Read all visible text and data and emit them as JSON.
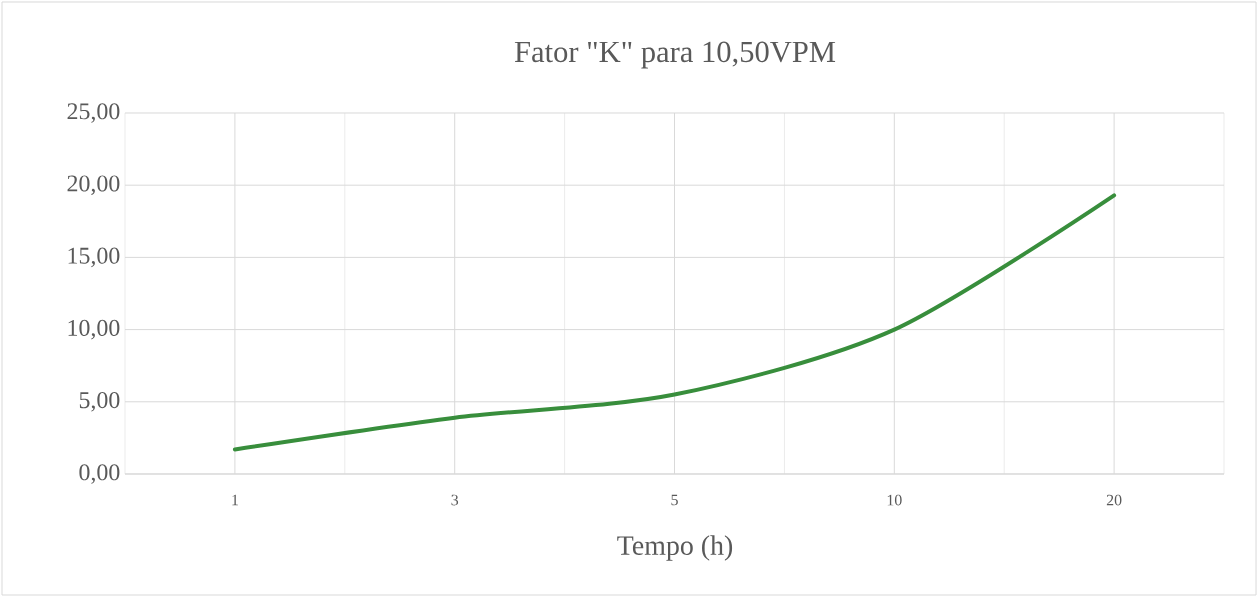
{
  "chart_data": {
    "type": "line",
    "title": "Fator \"K\" para 10,50VPM",
    "xlabel": "Tempo (h)",
    "categories": [
      "1",
      "3",
      "5",
      "10",
      "20"
    ],
    "series": [
      {
        "color": "#388e3c",
        "values": [
          1.7,
          3.9,
          5.5,
          10.0,
          19.3
        ]
      }
    ],
    "ylim": [
      0,
      25
    ],
    "yticks": [
      {
        "value": 0,
        "label": "0,00"
      },
      {
        "value": 5,
        "label": "5,00"
      },
      {
        "value": 10,
        "label": "10,00"
      },
      {
        "value": 15,
        "label": "15,00"
      },
      {
        "value": 20,
        "label": "20,00"
      },
      {
        "value": 25,
        "label": "25,00"
      }
    ],
    "grid": true,
    "marker": "none",
    "line_style": "solid"
  }
}
